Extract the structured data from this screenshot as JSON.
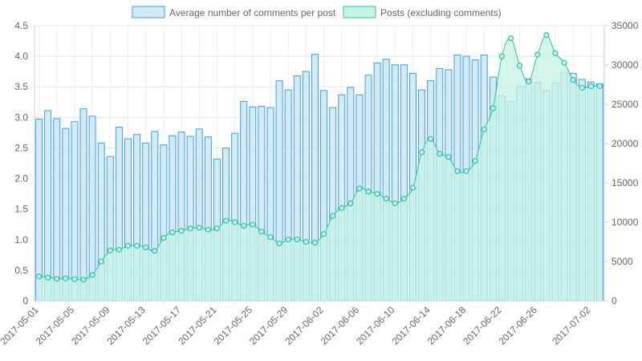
{
  "chart_data": {
    "type": "bar",
    "x": [
      "2017-05-01",
      "2017-05-02",
      "2017-05-03",
      "2017-05-04",
      "2017-05-05",
      "2017-05-06",
      "2017-05-07",
      "2017-05-08",
      "2017-05-09",
      "2017-05-10",
      "2017-05-11",
      "2017-05-12",
      "2017-05-13",
      "2017-05-14",
      "2017-05-15",
      "2017-05-16",
      "2017-05-17",
      "2017-05-18",
      "2017-05-19",
      "2017-05-20",
      "2017-05-21",
      "2017-05-22",
      "2017-05-23",
      "2017-05-24",
      "2017-05-25",
      "2017-05-26",
      "2017-05-27",
      "2017-05-28",
      "2017-05-29",
      "2017-05-30",
      "2017-05-31",
      "2017-06-01",
      "2017-06-02",
      "2017-06-03",
      "2017-06-04",
      "2017-06-05",
      "2017-06-06",
      "2017-06-07",
      "2017-06-08",
      "2017-06-09",
      "2017-06-10",
      "2017-06-11",
      "2017-06-12",
      "2017-06-13",
      "2017-06-14",
      "2017-06-15",
      "2017-06-16",
      "2017-06-17",
      "2017-06-18",
      "2017-06-19",
      "2017-06-20",
      "2017-06-21",
      "2017-06-22",
      "2017-06-23",
      "2017-06-24",
      "2017-06-25",
      "2017-06-26",
      "2017-06-27",
      "2017-06-28",
      "2017-06-29",
      "2017-06-30",
      "2017-07-01",
      "2017-07-02",
      "2017-07-03"
    ],
    "x_tick_labels": [
      "2017-05-01",
      "2017-05-05",
      "2017-05-09",
      "2017-05-13",
      "2017-05-17",
      "2017-05-21",
      "2017-05-25",
      "2017-05-29",
      "2017-06-02",
      "2017-06-06",
      "2017-06-10",
      "2017-06-14",
      "2017-06-18",
      "2017-06-22",
      "2017-06-26",
      "2017-07-02"
    ],
    "series": [
      {
        "name": "Average number of comments per post",
        "kind": "bar",
        "axis": "left",
        "color": "#36a2eb",
        "fill": "#d4eaf9",
        "values": [
          2.97,
          3.11,
          2.98,
          2.82,
          2.93,
          3.14,
          3.02,
          2.58,
          2.36,
          2.84,
          2.65,
          2.72,
          2.58,
          2.77,
          2.55,
          2.7,
          2.76,
          2.69,
          2.81,
          2.68,
          2.32,
          2.5,
          2.74,
          3.26,
          3.17,
          3.18,
          3.16,
          3.6,
          3.45,
          3.68,
          3.75,
          4.03,
          3.44,
          3.16,
          3.37,
          3.49,
          3.37,
          3.69,
          3.89,
          3.95,
          3.86,
          3.86,
          3.72,
          3.45,
          3.6,
          3.8,
          3.78,
          4.02,
          4.0,
          3.94,
          4.02,
          3.66,
          3.35,
          3.26,
          3.51,
          3.63,
          3.57,
          3.44,
          3.56,
          3.74,
          3.72,
          3.62,
          3.58,
          3.55
        ]
      },
      {
        "name": "Posts (excluding comments)",
        "kind": "area",
        "axis": "right",
        "color": "#2ec4a4",
        "fill": "#c6f3e3",
        "values": [
          3100,
          2950,
          2800,
          2850,
          2750,
          2700,
          3300,
          5000,
          6400,
          6500,
          7000,
          7000,
          6800,
          6350,
          8000,
          8700,
          8900,
          9200,
          9300,
          9050,
          9200,
          10200,
          10000,
          9550,
          9700,
          8800,
          8100,
          7300,
          7800,
          7800,
          7500,
          7400,
          8500,
          10800,
          11800,
          12400,
          14300,
          13900,
          13600,
          13000,
          12400,
          13000,
          14400,
          18900,
          20600,
          18700,
          18300,
          16500,
          16500,
          17800,
          21800,
          24500,
          31100,
          33400,
          29900,
          27900,
          31300,
          33800,
          31500,
          30300,
          28100,
          27100,
          27300,
          27300
        ]
      }
    ],
    "y_left": {
      "min": 0,
      "max": 4.5,
      "ticks": [
        "0",
        "0.5",
        "1.0",
        "1.5",
        "2.0",
        "2.5",
        "3.0",
        "3.5",
        "4.0",
        "4.5"
      ]
    },
    "y_right": {
      "min": 0,
      "max": 35000,
      "ticks": [
        "0",
        "5000",
        "10000",
        "15000",
        "20000",
        "25000",
        "30000",
        "35000"
      ]
    },
    "grid": true,
    "legend_position": "top"
  }
}
